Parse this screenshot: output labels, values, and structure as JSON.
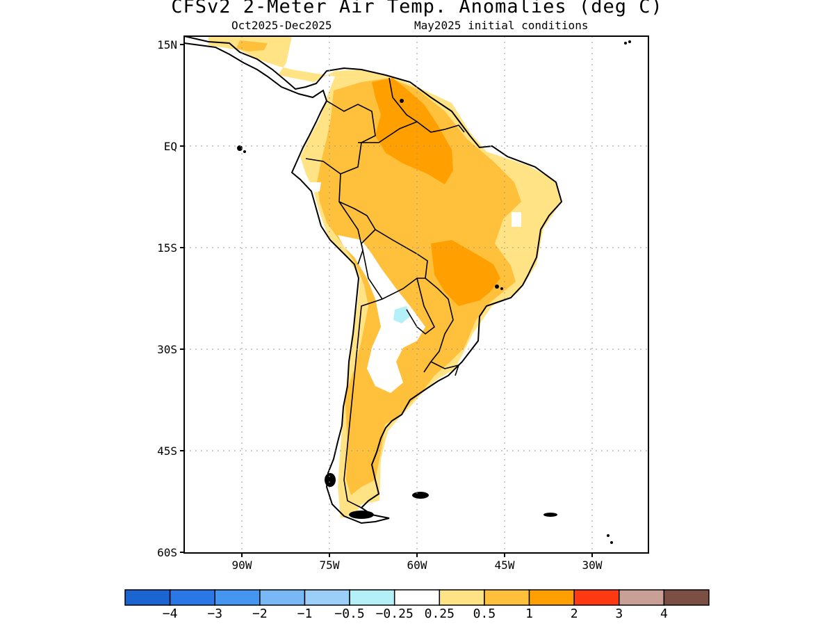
{
  "title": "CFSv2 2-Meter Air Temp. Anomalies (deg C)",
  "subtitle_left": "Oct2025-Dec2025",
  "subtitle_right": "May2025 initial conditions",
  "lat_labels": [
    "15N",
    "EQ",
    "15S",
    "30S",
    "45S",
    "60S"
  ],
  "lon_labels": [
    "90W",
    "75W",
    "60W",
    "45W",
    "30W"
  ],
  "colorbar": {
    "colors": [
      "#1a65d1",
      "#2a78e8",
      "#4496f0",
      "#78b8f5",
      "#9ccff8",
      "#b3f0f8",
      "#ffffff",
      "#ffe384",
      "#ffc03c",
      "#ffa000",
      "#ff3a10",
      "#c8a096",
      "#7b4f44"
    ],
    "labels": [
      "-4",
      "-3",
      "-2",
      "-1",
      "-0.5",
      "-0.25",
      "0.25",
      "0.5",
      "1",
      "2",
      "3",
      "4"
    ]
  },
  "anomaly_colors": {
    "light": "#ffe384",
    "medium": "#ffc03c",
    "strong": "#ffa000",
    "neutral": "#ffffff",
    "cool": "#b3f0f8"
  }
}
